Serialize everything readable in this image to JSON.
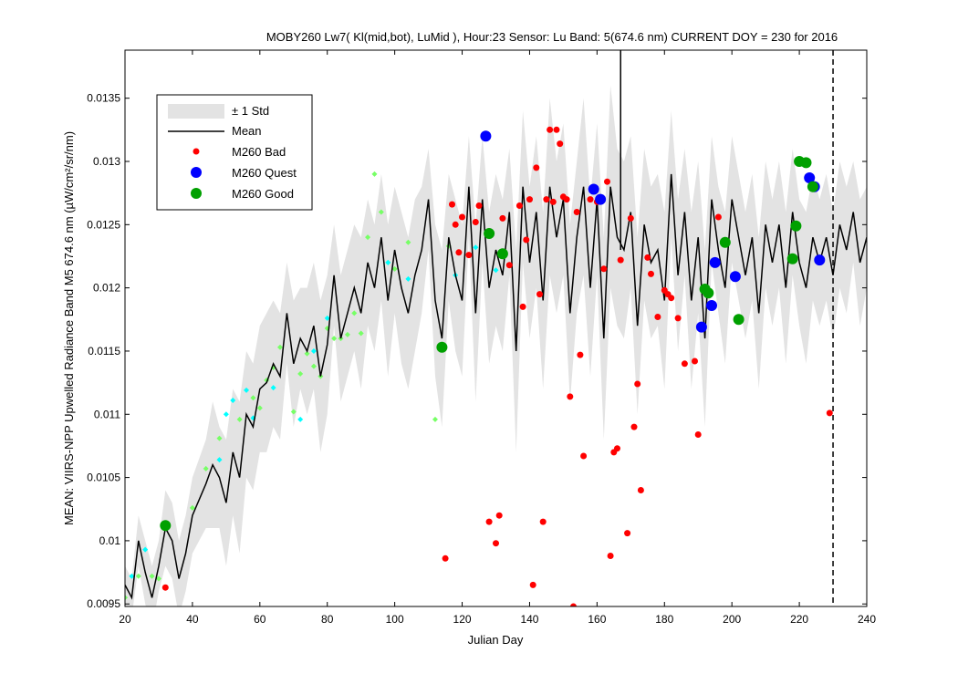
{
  "chart_data": {
    "type": "scatter",
    "title": "MOBY260   Lw7( Kl(mid,bot), LuMid ),   Hour:23 Sensor: Lu Band: 5(674.6 nm)   CURRENT DOY = 230 for 2016",
    "xlabel": "Julian Day",
    "ylabel": "MEAN: VIIRS-NPP Upwelled Radiance Band M5 674.6 nm (µW/cm²/sr/nm)",
    "xlim": [
      20,
      240
    ],
    "ylim": [
      0.00948,
      0.01388
    ],
    "xticks": [
      20,
      40,
      60,
      80,
      100,
      120,
      140,
      160,
      180,
      200,
      220,
      240
    ],
    "xtick_labels": [
      "20",
      "40",
      "60",
      "80",
      "100",
      "120",
      "140",
      "160",
      "180",
      "200",
      "220",
      "240"
    ],
    "yticks": [
      0.0095,
      0.01,
      0.0105,
      0.011,
      0.0115,
      0.012,
      0.0125,
      0.013,
      0.0135
    ],
    "ytick_labels": [
      "0.0095",
      "0.01",
      "0.0105",
      "0.011",
      "0.0115",
      "0.012",
      "0.0125",
      "0.013",
      "0.0135"
    ],
    "current_doy": 230,
    "grid": false,
    "legend_placement": "top-left",
    "legend": [
      {
        "label": "± 1 Std",
        "kind": "band"
      },
      {
        "label": "Mean",
        "kind": "line"
      },
      {
        "label": "M260 Bad",
        "kind": "marker",
        "color": "#ff0000",
        "size": "small"
      },
      {
        "label": "M260 Quest",
        "kind": "marker",
        "color": "#0000ff",
        "size": "large"
      },
      {
        "label": "M260 Good",
        "kind": "marker",
        "color": "#00a000",
        "size": "large"
      }
    ],
    "colors": {
      "std_band": "#e3e3e3",
      "mean": "#000000",
      "current_day": "#000000",
      "hist_light_green": "#77ff66",
      "hist_cyan": "#00ffff"
    },
    "mean_x": [
      20,
      22,
      24,
      26,
      28,
      30,
      32,
      34,
      36,
      38,
      40,
      44,
      46,
      48,
      50,
      52,
      54,
      56,
      58,
      60,
      62,
      64,
      66,
      68,
      70,
      72,
      74,
      76,
      78,
      80,
      82,
      84,
      86,
      88,
      90,
      92,
      94,
      96,
      98,
      100,
      102,
      104,
      106,
      108,
      110,
      112,
      114,
      116,
      118,
      120,
      122,
      124,
      126,
      128,
      130,
      132,
      134,
      136,
      138,
      140,
      142,
      144,
      146,
      148,
      150,
      152,
      154,
      156,
      158,
      160,
      162,
      164,
      166,
      168,
      170,
      172,
      174,
      176,
      178,
      180,
      182,
      184,
      186,
      188,
      190,
      192,
      194,
      196,
      198,
      200,
      202,
      204,
      206,
      208,
      210,
      212,
      214,
      216,
      218,
      220,
      222,
      224,
      226,
      228,
      230,
      232,
      234,
      236,
      238,
      240
    ],
    "mean_y": [
      0.00965,
      0.00955,
      0.01,
      0.00975,
      0.00955,
      0.0098,
      0.0101,
      0.01,
      0.0097,
      0.0099,
      0.0102,
      0.01045,
      0.0106,
      0.0105,
      0.0103,
      0.0107,
      0.0105,
      0.011,
      0.0109,
      0.0112,
      0.01125,
      0.0114,
      0.0113,
      0.0118,
      0.0114,
      0.0116,
      0.0115,
      0.0117,
      0.0113,
      0.01155,
      0.0121,
      0.0116,
      0.0118,
      0.012,
      0.0118,
      0.0122,
      0.012,
      0.0124,
      0.0119,
      0.0123,
      0.012,
      0.0118,
      0.0121,
      0.0123,
      0.0127,
      0.0119,
      0.0116,
      0.0124,
      0.0121,
      0.0119,
      0.0128,
      0.0118,
      0.0127,
      0.012,
      0.0123,
      0.0121,
      0.0126,
      0.0115,
      0.0128,
      0.0122,
      0.0126,
      0.0119,
      0.0128,
      0.0124,
      0.0127,
      0.0118,
      0.0124,
      0.0128,
      0.012,
      0.0127,
      0.0116,
      0.0128,
      0.0124,
      0.0123,
      0.0126,
      0.0117,
      0.0125,
      0.0122,
      0.0123,
      0.0119,
      0.0129,
      0.0121,
      0.0126,
      0.0119,
      0.0124,
      0.0116,
      0.0127,
      0.0123,
      0.012,
      0.0127,
      0.0124,
      0.0121,
      0.0124,
      0.0118,
      0.0125,
      0.0122,
      0.0125,
      0.012,
      0.0126,
      0.0122,
      0.012,
      0.0124,
      0.0122,
      0.0124,
      0.0121,
      0.0125,
      0.0123,
      0.0126,
      0.0122,
      0.0124
    ],
    "std_upper": [
      0.0098,
      0.0097,
      0.0102,
      0.01,
      0.0098,
      0.01,
      0.0104,
      0.0103,
      0.01,
      0.0102,
      0.0105,
      0.0108,
      0.0111,
      0.0109,
      0.0108,
      0.0112,
      0.0111,
      0.0115,
      0.0114,
      0.0117,
      0.0118,
      0.0119,
      0.0118,
      0.0122,
      0.0119,
      0.012,
      0.012,
      0.0122,
      0.0119,
      0.0121,
      0.0125,
      0.0121,
      0.0123,
      0.0125,
      0.0124,
      0.0127,
      0.0125,
      0.0129,
      0.0125,
      0.0128,
      0.0126,
      0.0124,
      0.0127,
      0.0128,
      0.0131,
      0.0125,
      0.0123,
      0.0129,
      0.0127,
      0.0125,
      0.0132,
      0.0125,
      0.0132,
      0.0126,
      0.0129,
      0.0127,
      0.0131,
      0.0123,
      0.0134,
      0.0128,
      0.0132,
      0.0126,
      0.0135,
      0.013,
      0.0133,
      0.0125,
      0.013,
      0.0135,
      0.0127,
      0.0133,
      0.0124,
      0.0136,
      0.0131,
      0.013,
      0.0132,
      0.0124,
      0.0131,
      0.0128,
      0.0129,
      0.0126,
      0.0134,
      0.0127,
      0.0131,
      0.0126,
      0.013,
      0.0123,
      0.0132,
      0.0128,
      0.0126,
      0.0132,
      0.0129,
      0.0126,
      0.0129,
      0.0124,
      0.013,
      0.0127,
      0.013,
      0.0126,
      0.0131,
      0.0127,
      0.0126,
      0.0129,
      0.0127,
      0.0129,
      0.0126,
      0.013,
      0.0128,
      0.013,
      0.0127,
      0.0128
    ],
    "std_lower": [
      0.0095,
      0.0094,
      0.0098,
      0.0095,
      0.0093,
      0.0096,
      0.0098,
      0.0097,
      0.0094,
      0.0096,
      0.0099,
      0.0101,
      0.0101,
      0.0101,
      0.0098,
      0.0102,
      0.0099,
      0.0105,
      0.0104,
      0.0107,
      0.0107,
      0.0109,
      0.0108,
      0.0114,
      0.0109,
      0.0112,
      0.011,
      0.0112,
      0.0107,
      0.011,
      0.0117,
      0.0111,
      0.0113,
      0.0115,
      0.0112,
      0.0117,
      0.0115,
      0.0119,
      0.0113,
      0.0118,
      0.0114,
      0.0112,
      0.0115,
      0.0118,
      0.0123,
      0.0113,
      0.0109,
      0.0119,
      0.0115,
      0.0113,
      0.0124,
      0.0111,
      0.0122,
      0.0114,
      0.0117,
      0.0115,
      0.0121,
      0.0107,
      0.0122,
      0.0116,
      0.012,
      0.0112,
      0.0121,
      0.0118,
      0.0121,
      0.0111,
      0.0118,
      0.0121,
      0.0113,
      0.0121,
      0.0108,
      0.012,
      0.0117,
      0.0116,
      0.012,
      0.011,
      0.0119,
      0.0116,
      0.0117,
      0.0112,
      0.0124,
      0.0115,
      0.0121,
      0.0112,
      0.0118,
      0.0109,
      0.0122,
      0.0118,
      0.0114,
      0.0122,
      0.0119,
      0.0116,
      0.0119,
      0.0112,
      0.012,
      0.0117,
      0.012,
      0.0114,
      0.0121,
      0.0117,
      0.0114,
      0.0119,
      0.0117,
      0.0119,
      0.0116,
      0.012,
      0.0118,
      0.0122,
      0.0117,
      0.012
    ],
    "mean_spike": {
      "x": 167,
      "y": 0.01388
    },
    "series": [
      {
        "name": "M260 Bad",
        "color": "#ff0000",
        "x": [
          32,
          115,
          117,
          118,
          119,
          120,
          122,
          124,
          125,
          128,
          130,
          131,
          132,
          134,
          137,
          138,
          139,
          140,
          141,
          142,
          143,
          144,
          145,
          146,
          147,
          148,
          149,
          150,
          151,
          152,
          153,
          154,
          155,
          156,
          158,
          160,
          162,
          163,
          164,
          165,
          166,
          167,
          169,
          170,
          171,
          172,
          173,
          175,
          176,
          178,
          180,
          181,
          182,
          184,
          186,
          189,
          190,
          196,
          229
        ],
        "y": [
          0.00963,
          0.00986,
          0.01266,
          0.0125,
          0.01228,
          0.01256,
          0.01226,
          0.01252,
          0.01265,
          0.01015,
          0.00998,
          0.0102,
          0.01255,
          0.01218,
          0.01265,
          0.01185,
          0.01238,
          0.0127,
          0.00965,
          0.01295,
          0.01195,
          0.01015,
          0.0127,
          0.01325,
          0.01268,
          0.01325,
          0.01314,
          0.01272,
          0.0127,
          0.01114,
          0.00948,
          0.0126,
          0.01147,
          0.01067,
          0.0127,
          0.01268,
          0.01215,
          0.01284,
          0.00988,
          0.0107,
          0.01073,
          0.01222,
          0.01006,
          0.01255,
          0.0109,
          0.01124,
          0.0104,
          0.01224,
          0.01211,
          0.01177,
          0.01198,
          0.01195,
          0.01192,
          0.01176,
          0.0114,
          0.01142,
          0.01084,
          0.01256,
          0.01101
        ]
      },
      {
        "name": "M260 Quest",
        "color": "#0000ff",
        "x": [
          127,
          159,
          161,
          191,
          194,
          195,
          201,
          223,
          224.5,
          226
        ],
        "y": [
          0.0132,
          0.01278,
          0.0127,
          0.01169,
          0.01186,
          0.0122,
          0.01209,
          0.01287,
          0.0128,
          0.01222
        ]
      },
      {
        "name": "M260 Good",
        "color": "#00a000",
        "x": [
          32,
          114,
          128,
          132,
          192,
          193,
          198,
          202,
          218,
          219,
          220,
          222,
          224
        ],
        "y": [
          0.01012,
          0.01153,
          0.01243,
          0.01227,
          0.01199,
          0.01196,
          0.01236,
          0.01175,
          0.01223,
          0.01249,
          0.013,
          0.01299,
          0.0128
        ]
      },
      {
        "name": "",
        "color": "#77ff66",
        "x": [
          20,
          24,
          28,
          30,
          40,
          44,
          48,
          54,
          58,
          60,
          62,
          64,
          66,
          70,
          72,
          74,
          76,
          78,
          80,
          82,
          84,
          86,
          88,
          90,
          92,
          94,
          96,
          98,
          100,
          104,
          112,
          116
        ],
        "y": [
          0.00955,
          0.00972,
          0.00972,
          0.0097,
          0.01026,
          0.01057,
          0.01081,
          0.01096,
          0.01113,
          0.01105,
          0.01127,
          0.01137,
          0.01153,
          0.01102,
          0.01132,
          0.01148,
          0.01138,
          0.0113,
          0.01168,
          0.0116,
          0.0116,
          0.01163,
          0.0118,
          0.01164,
          0.0124,
          0.0129,
          0.0126,
          0.0122,
          0.01215,
          0.01236,
          0.01096,
          0.01233
        ]
      },
      {
        "name": "",
        "color": "#00ffff",
        "x": [
          22,
          26,
          48,
          50,
          52,
          56,
          58,
          64,
          72,
          76,
          80,
          98,
          104,
          118,
          124,
          130
        ],
        "y": [
          0.00972,
          0.00993,
          0.01064,
          0.011,
          0.01111,
          0.01119,
          0.01097,
          0.01121,
          0.01096,
          0.0115,
          0.01176,
          0.0122,
          0.01207,
          0.0121,
          0.01232,
          0.01214
        ]
      }
    ]
  }
}
